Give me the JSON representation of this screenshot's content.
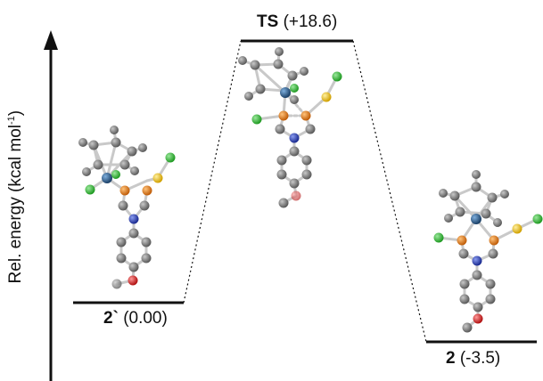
{
  "yaxis": {
    "label": "Rel. energy (kcal mol",
    "label_sup": "-1",
    "label_tail": ")"
  },
  "levels": [
    {
      "id": "2-prime",
      "name": "2`",
      "energy_text": "(0.00)",
      "energy": 0.0
    },
    {
      "id": "ts",
      "name": "TS",
      "energy_text": "(+18.6)",
      "energy": 18.6
    },
    {
      "id": "2",
      "name": "2",
      "energy_text": "(-3.5)",
      "energy": -3.5
    }
  ],
  "colors": {
    "carbon": "#7a7a7a",
    "chlorine": "#38c23a",
    "phosphorus": "#e07b1a",
    "sulfur": "#f0c419",
    "nitrogen": "#2a3fb8",
    "oxygen": "#e02020",
    "metal": "#2a5a8a",
    "line": "#111111"
  }
}
